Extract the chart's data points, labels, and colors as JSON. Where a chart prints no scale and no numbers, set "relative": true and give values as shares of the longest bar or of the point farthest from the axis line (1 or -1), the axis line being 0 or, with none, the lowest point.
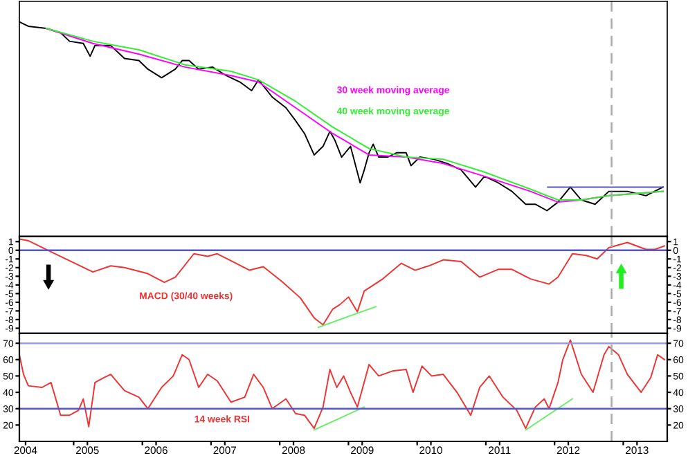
{
  "chart_data": [
    {
      "type": "line",
      "relative": true,
      "xlim": [
        2004.21,
        2013.64
      ],
      "tick_labels": false,
      "grid": false,
      "series": [
        {
          "color": "#000000",
          "x": [
            2004.21,
            2004.34,
            2004.6,
            2004.81,
            2004.94,
            2005.14,
            2005.24,
            2005.31,
            2005.54,
            2005.74,
            2005.95,
            2006.08,
            2006.28,
            2006.48,
            2006.58,
            2006.68,
            2006.82,
            2007.02,
            2007.22,
            2007.42,
            2007.59,
            2007.69,
            2007.89,
            2008.09,
            2008.23,
            2008.36,
            2008.5,
            2008.63,
            2008.73,
            2008.8,
            2008.9,
            2009.03,
            2009.17,
            2009.23,
            2009.3,
            2009.36,
            2009.44,
            2009.57,
            2009.7,
            2009.84,
            2009.91,
            2010.04,
            2010.24,
            2010.44,
            2010.64,
            2010.85,
            2010.98,
            2011.18,
            2011.38,
            2011.58,
            2011.72,
            2011.89,
            2012.05,
            2012.23,
            2012.39,
            2012.59,
            2012.79,
            2013.06,
            2013.33,
            2013.58
          ],
          "values": [
            1.0,
            0.98,
            0.97,
            0.95,
            0.91,
            0.9,
            0.84,
            0.89,
            0.89,
            0.83,
            0.82,
            0.78,
            0.74,
            0.78,
            0.82,
            0.82,
            0.78,
            0.79,
            0.75,
            0.72,
            0.68,
            0.73,
            0.65,
            0.6,
            0.54,
            0.48,
            0.38,
            0.42,
            0.49,
            0.45,
            0.37,
            0.42,
            0.25,
            0.31,
            0.39,
            0.43,
            0.37,
            0.37,
            0.39,
            0.39,
            0.33,
            0.37,
            0.36,
            0.34,
            0.31,
            0.23,
            0.28,
            0.25,
            0.21,
            0.15,
            0.15,
            0.12,
            0.16,
            0.23,
            0.17,
            0.15,
            0.21,
            0.21,
            0.19,
            0.23
          ]
        },
        {
          "name": "30 week moving average",
          "color": "#ff00ff",
          "x": [
            2004.6,
            2005.28,
            2005.95,
            2006.62,
            2007.29,
            2007.69,
            2008.23,
            2008.77,
            2009.3,
            2009.84,
            2010.38,
            2010.98,
            2011.65,
            2012.05,
            2012.39,
            2012.79,
            2013.58
          ],
          "values": [
            0.97,
            0.9,
            0.85,
            0.79,
            0.75,
            0.72,
            0.6,
            0.48,
            0.38,
            0.37,
            0.34,
            0.28,
            0.21,
            0.16,
            0.17,
            0.19,
            0.21
          ]
        },
        {
          "name": "40 week moving average",
          "color": "#33ee33",
          "x": [
            2004.6,
            2005.28,
            2005.95,
            2006.62,
            2007.29,
            2007.69,
            2008.23,
            2008.77,
            2009.3,
            2009.84,
            2010.38,
            2010.98,
            2011.65,
            2012.05,
            2012.39,
            2012.79,
            2013.58
          ],
          "values": [
            0.97,
            0.91,
            0.87,
            0.8,
            0.77,
            0.73,
            0.63,
            0.51,
            0.41,
            0.37,
            0.36,
            0.3,
            0.22,
            0.17,
            0.17,
            0.19,
            0.21
          ]
        },
        {
          "color": "#5555cc",
          "x": [
            2011.9,
            2013.58
          ],
          "values": [
            0.23,
            0.23
          ]
        }
      ],
      "ref_lines": [
        {
          "axis": "x",
          "value": 2012.83,
          "color": "#aaaaaa",
          "line_style": "dashed"
        }
      ]
    },
    {
      "type": "line",
      "xlim": [
        2004.21,
        2013.64
      ],
      "ylim": [
        -9.6,
        1.6
      ],
      "yticks": [
        -9,
        -8,
        -7,
        -6,
        -5,
        -4,
        -3,
        -2,
        -1,
        0,
        1
      ],
      "y2lim": [
        -9.6,
        1.6
      ],
      "y2ticks": [
        -9,
        -8,
        -7,
        -6,
        -5,
        -4,
        -3,
        -2,
        -1,
        0,
        1
      ],
      "tick_labels": "y",
      "grid": false,
      "series": [
        {
          "name": "MACD (30/40 weeks)",
          "color": "#ee3333",
          "x": [
            2004.21,
            2004.34,
            2004.6,
            2004.94,
            2005.28,
            2005.54,
            2005.74,
            2006.08,
            2006.32,
            2006.48,
            2006.75,
            2006.95,
            2007.09,
            2007.29,
            2007.56,
            2007.76,
            2008.03,
            2008.3,
            2008.5,
            2008.63,
            2008.77,
            2008.87,
            2009.0,
            2009.13,
            2009.23,
            2009.5,
            2009.77,
            2009.97,
            2010.17,
            2010.38,
            2010.64,
            2010.91,
            2011.18,
            2011.38,
            2011.65,
            2011.92,
            2012.05,
            2012.26,
            2012.46,
            2012.62,
            2012.79,
            2013.06,
            2013.33,
            2013.46,
            2013.6
          ],
          "values": [
            1.3,
            1.1,
            0.1,
            -1.2,
            -2.5,
            -1.8,
            -2.0,
            -2.7,
            -3.7,
            -3.1,
            -0.4,
            -0.7,
            -0.4,
            -1.2,
            -2.3,
            -1.9,
            -3.6,
            -5.5,
            -7.8,
            -8.6,
            -6.8,
            -6.3,
            -5.4,
            -7.1,
            -4.7,
            -3.3,
            -1.5,
            -2.3,
            -1.8,
            -1.1,
            -1.3,
            -3.1,
            -2.2,
            -2.2,
            -3.3,
            -3.9,
            -3.1,
            -0.4,
            -0.6,
            -1.0,
            0.3,
            0.9,
            0.1,
            0.1,
            0.5
          ]
        },
        {
          "color": "#66ee66",
          "x": [
            2008.56,
            2009.4
          ],
          "values": [
            -8.9,
            -6.5
          ]
        }
      ],
      "ref_lines": [
        {
          "axis": "y",
          "value": 0,
          "color": "#5555cc"
        },
        {
          "axis": "x",
          "value": 2012.83,
          "color": "#aaaaaa",
          "line_style": "dashed"
        }
      ]
    },
    {
      "type": "line",
      "xlim": [
        2004.21,
        2013.64
      ],
      "ylim": [
        10,
        76
      ],
      "yticks": [
        20,
        30,
        40,
        50,
        60,
        70
      ],
      "y2lim": [
        10,
        76
      ],
      "y2ticks": [
        20,
        30,
        40,
        50,
        60,
        70
      ],
      "grid": false,
      "xticks": [
        {
          "value": 2004.3,
          "label": "2004"
        },
        {
          "value": 2005,
          "label": null
        },
        {
          "value": 2005.2,
          "label": "2005"
        },
        {
          "value": 2006,
          "label": null
        },
        {
          "value": 2006.2,
          "label": "2006"
        },
        {
          "value": 2007,
          "label": null
        },
        {
          "value": 2007.2,
          "label": "2007"
        },
        {
          "value": 2008,
          "label": null
        },
        {
          "value": 2008.2,
          "label": "2008"
        },
        {
          "value": 2009,
          "label": null
        },
        {
          "value": 2009.2,
          "label": "2009"
        },
        {
          "value": 2010,
          "label": null
        },
        {
          "value": 2010.2,
          "label": "2010"
        },
        {
          "value": 2011,
          "label": null
        },
        {
          "value": 2011.2,
          "label": "2011"
        },
        {
          "value": 2012,
          "label": null
        },
        {
          "value": 2012.2,
          "label": "2012"
        },
        {
          "value": 2013,
          "label": null
        },
        {
          "value": 2013.2,
          "label": "2013"
        }
      ],
      "series": [
        {
          "name": "14 week RSI",
          "color": "#ee3333",
          "x": [
            2004.21,
            2004.27,
            2004.34,
            2004.54,
            2004.67,
            2004.81,
            2004.94,
            2005.07,
            2005.14,
            2005.22,
            2005.31,
            2005.44,
            2005.54,
            2005.74,
            2005.95,
            2006.08,
            2006.28,
            2006.45,
            2006.58,
            2006.68,
            2006.82,
            2006.95,
            2007.09,
            2007.29,
            2007.49,
            2007.62,
            2007.76,
            2007.89,
            2008.09,
            2008.23,
            2008.36,
            2008.5,
            2008.63,
            2008.73,
            2008.83,
            2008.93,
            2009.03,
            2009.13,
            2009.3,
            2009.44,
            2009.64,
            2009.84,
            2009.94,
            2010.07,
            2010.21,
            2010.38,
            2010.58,
            2010.78,
            2010.91,
            2011.05,
            2011.25,
            2011.45,
            2011.58,
            2011.72,
            2011.85,
            2011.92,
            2012.05,
            2012.12,
            2012.23,
            2012.39,
            2012.56,
            2012.72,
            2012.79,
            2012.93,
            2013.06,
            2013.26,
            2013.4,
            2013.5,
            2013.6
          ],
          "values": [
            63,
            51,
            44,
            43,
            46,
            26,
            26,
            29,
            36,
            19,
            46,
            49,
            51,
            41,
            37,
            30,
            43,
            50,
            63,
            60,
            43,
            51,
            47,
            34,
            37,
            51,
            43,
            30,
            36,
            27,
            26,
            18,
            31,
            54,
            43,
            50,
            40,
            31,
            57,
            50,
            53,
            54,
            40,
            56,
            50,
            51,
            40,
            26,
            43,
            50,
            37,
            29,
            18,
            31,
            36,
            30,
            46,
            60,
            72,
            51,
            40,
            63,
            68,
            63,
            51,
            40,
            49,
            63,
            60
          ]
        },
        {
          "color": "#66ee66",
          "x": [
            2008.5,
            2009.23
          ],
          "values": [
            17,
            31
          ]
        },
        {
          "color": "#66ee66",
          "x": [
            2011.58,
            2012.26
          ],
          "values": [
            17,
            36
          ]
        }
      ],
      "ref_lines": [
        {
          "axis": "y",
          "value": 30,
          "color": "#5555cc"
        },
        {
          "axis": "y",
          "value": 70,
          "color": "#9999ee"
        },
        {
          "axis": "x",
          "value": 2012.83,
          "color": "#aaaaaa",
          "line_style": "dashed"
        }
      ]
    }
  ]
}
